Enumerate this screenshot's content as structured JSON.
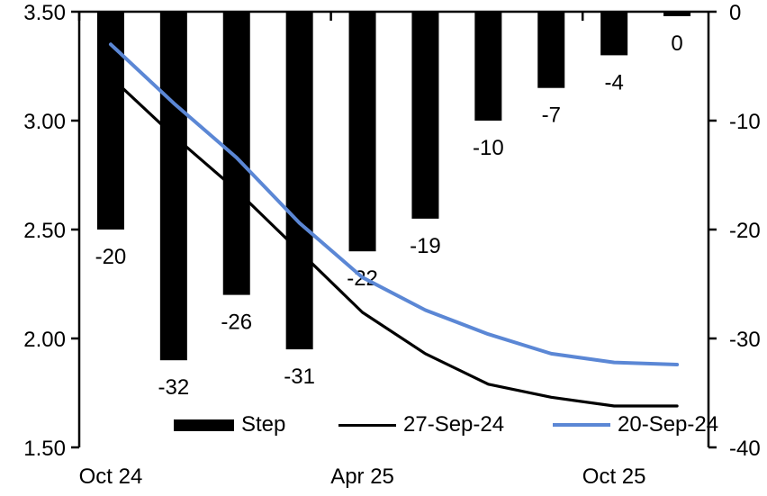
{
  "chart_data": {
    "type": "combo-bar-line",
    "n_categories": 10,
    "title": "",
    "grid": false,
    "legend_position": "bottom-inside",
    "left_axis": {
      "min": 1.5,
      "max": 3.5,
      "tick_labels": [
        "3.50",
        "3.00",
        "2.50",
        "2.00",
        "1.50"
      ],
      "tick_values": [
        3.5,
        3.0,
        2.5,
        2.0,
        1.5
      ]
    },
    "right_axis": {
      "min": -40,
      "max": 0,
      "tick_labels": [
        "0",
        "-10",
        "-20",
        "-30",
        "-40"
      ],
      "tick_values": [
        0,
        -10,
        -20,
        -30,
        -40
      ]
    },
    "x_axis": {
      "tick_labels": [
        {
          "label": "Oct 24",
          "category_index": 0
        },
        {
          "label": "Apr 25",
          "category_index": 4
        },
        {
          "label": "Oct 25",
          "category_index": 8
        }
      ],
      "boundary_tick_indices": [
        0,
        4,
        8
      ]
    },
    "bar_series": {
      "name": "Step",
      "axis": "right",
      "color": "#000000",
      "values": [
        -20,
        -32,
        -26,
        -31,
        -22,
        -19,
        -10,
        -7,
        -4,
        0
      ],
      "labels": [
        "-20",
        "-32",
        "-26",
        "-31",
        "-22",
        "-19",
        "-10",
        "-7",
        "-4",
        "0"
      ]
    },
    "line_series": [
      {
        "name": "27-Sep-24",
        "axis": "left",
        "color": "#000000",
        "values": [
          3.2,
          2.93,
          2.68,
          2.4,
          2.12,
          1.93,
          1.79,
          1.73,
          1.69,
          1.69
        ]
      },
      {
        "name": "20-Sep-24",
        "axis": "left",
        "color": "#5B87D5",
        "values": [
          3.35,
          3.08,
          2.83,
          2.53,
          2.28,
          2.13,
          2.02,
          1.93,
          1.89,
          1.88
        ]
      }
    ]
  }
}
